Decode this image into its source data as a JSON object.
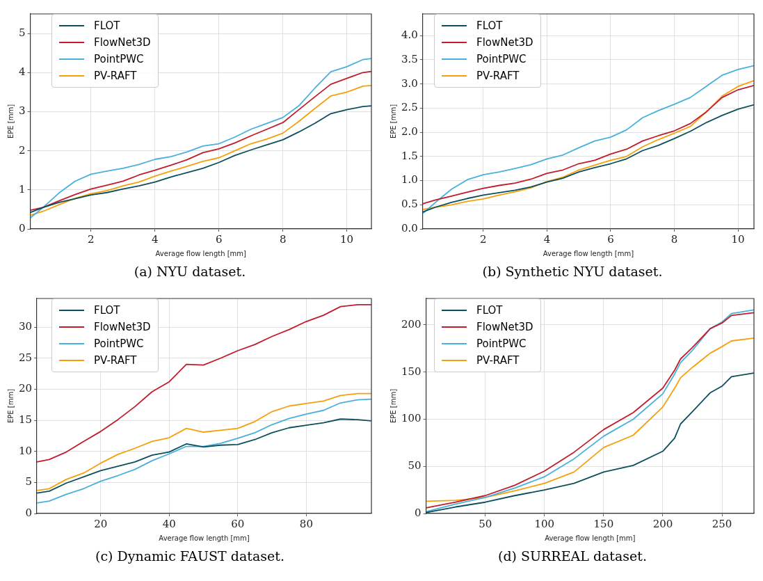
{
  "chart_data": [
    {
      "type": "line",
      "xlabel": "Average flow length [mm]",
      "ylabel": "EPE [mm]",
      "annotations": [
        "(a) NYU dataset."
      ],
      "legend": "top left",
      "grid": true,
      "x": [
        0.1,
        0.5,
        1,
        1.5,
        2,
        2.5,
        3,
        3.5,
        4,
        4.5,
        5,
        5.5,
        6,
        6.5,
        7,
        7.5,
        8,
        8.5,
        9,
        9.5,
        10,
        10.5,
        10.77
      ],
      "xlim": [
        0.1,
        10.77
      ],
      "xticks": [
        2,
        4,
        6,
        8,
        10
      ],
      "ylim": [
        0,
        5.5
      ],
      "yticks": [
        0,
        1,
        2,
        3,
        4,
        5
      ],
      "series": [
        {
          "name": "FLOT",
          "color": "#0b4f5c",
          "values": [
            0.42,
            0.55,
            0.68,
            0.77,
            0.87,
            0.93,
            1.02,
            1.1,
            1.2,
            1.33,
            1.44,
            1.55,
            1.7,
            1.88,
            2.02,
            2.15,
            2.28,
            2.48,
            2.7,
            2.95,
            3.05,
            3.13,
            3.15
          ]
        },
        {
          "name": "FlowNet3D",
          "color": "#c01c2c",
          "values": [
            0.48,
            0.55,
            0.72,
            0.88,
            1.02,
            1.12,
            1.22,
            1.38,
            1.5,
            1.63,
            1.77,
            1.95,
            2.05,
            2.2,
            2.38,
            2.55,
            2.72,
            3.05,
            3.38,
            3.7,
            3.85,
            4.0,
            4.03
          ]
        },
        {
          "name": "PointPWC",
          "color": "#48b0dc",
          "values": [
            0.28,
            0.55,
            0.92,
            1.22,
            1.4,
            1.48,
            1.55,
            1.65,
            1.78,
            1.85,
            1.97,
            2.12,
            2.18,
            2.35,
            2.55,
            2.7,
            2.85,
            3.15,
            3.6,
            4.02,
            4.15,
            4.33,
            4.36
          ]
        },
        {
          "name": "PV-RAFT",
          "color": "#f5a00a",
          "values": [
            0.35,
            0.45,
            0.62,
            0.78,
            0.9,
            0.98,
            1.1,
            1.2,
            1.35,
            1.48,
            1.6,
            1.73,
            1.82,
            2.0,
            2.18,
            2.3,
            2.45,
            2.75,
            3.08,
            3.4,
            3.5,
            3.65,
            3.67
          ]
        }
      ]
    },
    {
      "type": "line",
      "xlabel": "Average flow length [mm]",
      "ylabel": "EPE [mm]",
      "annotations": [
        "(b) Synthetic NYU dataset."
      ],
      "legend": "top left",
      "grid": true,
      "x": [
        0.1,
        0.5,
        1,
        1.5,
        2,
        2.5,
        3,
        3.5,
        4,
        4.5,
        5,
        5.5,
        6,
        6.5,
        7,
        7.5,
        8,
        8.5,
        9,
        9.5,
        10,
        10.5
      ],
      "xlim": [
        0.1,
        10.5
      ],
      "xticks": [
        2,
        4,
        6,
        8,
        10
      ],
      "ylim": [
        0,
        4.45
      ],
      "yticks": [
        {
          "value": 0,
          "label": "0.0"
        },
        {
          "value": 0.5,
          "label": "0.5"
        },
        {
          "value": 1,
          "label": "1.0"
        },
        {
          "value": 1.5,
          "label": "1.5"
        },
        {
          "value": 2,
          "label": "2.0"
        },
        {
          "value": 2.5,
          "label": "2.5"
        },
        {
          "value": 3,
          "label": "3.0"
        },
        {
          "value": 3.5,
          "label": "3.5"
        },
        {
          "value": 4,
          "label": "4.0"
        }
      ],
      "series": [
        {
          "name": "FLOT",
          "color": "#0b4f5c",
          "values": [
            0.35,
            0.45,
            0.55,
            0.63,
            0.7,
            0.75,
            0.8,
            0.87,
            0.97,
            1.05,
            1.18,
            1.27,
            1.35,
            1.45,
            1.62,
            1.73,
            1.87,
            2.02,
            2.2,
            2.35,
            2.48,
            2.57
          ]
        },
        {
          "name": "FlowNet3D",
          "color": "#c01c2c",
          "values": [
            0.52,
            0.6,
            0.68,
            0.76,
            0.84,
            0.9,
            0.95,
            1.03,
            1.15,
            1.22,
            1.35,
            1.42,
            1.55,
            1.65,
            1.82,
            1.93,
            2.03,
            2.18,
            2.42,
            2.72,
            2.88,
            2.97
          ]
        },
        {
          "name": "PointPWC",
          "color": "#48b0dc",
          "values": [
            0.32,
            0.55,
            0.82,
            1.02,
            1.12,
            1.18,
            1.25,
            1.33,
            1.45,
            1.53,
            1.68,
            1.82,
            1.9,
            2.05,
            2.3,
            2.45,
            2.58,
            2.72,
            2.95,
            3.18,
            3.3,
            3.38
          ]
        },
        {
          "name": "PV-RAFT",
          "color": "#f5a00a",
          "values": [
            0.4,
            0.45,
            0.5,
            0.57,
            0.62,
            0.7,
            0.77,
            0.85,
            0.98,
            1.07,
            1.22,
            1.32,
            1.42,
            1.5,
            1.7,
            1.85,
            1.98,
            2.12,
            2.42,
            2.75,
            2.95,
            3.07
          ]
        }
      ]
    },
    {
      "type": "line",
      "xlabel": "Average flow length [mm]",
      "ylabel": "EPE [mm]",
      "annotations": [
        "(c) Dynamic FAUST dataset."
      ],
      "legend": "top left",
      "grid": true,
      "x": [
        1.4,
        5,
        10,
        15,
        20,
        25,
        30,
        35,
        40,
        45,
        50,
        55,
        60,
        65,
        70,
        75,
        80,
        85,
        90,
        95,
        99
      ],
      "xlim": [
        1.4,
        99
      ],
      "xticks": [
        20,
        40,
        60,
        80
      ],
      "ylim": [
        0,
        34.6
      ],
      "yticks": [
        0,
        5,
        10,
        15,
        20,
        25,
        30
      ],
      "series": [
        {
          "name": "FLOT",
          "color": "#0b4f5c",
          "values": [
            3.3,
            3.6,
            4.9,
            5.9,
            6.9,
            7.6,
            8.3,
            9.4,
            9.9,
            11.2,
            10.7,
            11.0,
            11.1,
            11.9,
            13.0,
            13.8,
            14.2,
            14.6,
            15.2,
            15.1,
            14.9
          ]
        },
        {
          "name": "FlowNet3D",
          "color": "#c01c2c",
          "values": [
            8.3,
            8.7,
            9.9,
            11.6,
            13.2,
            15.1,
            17.2,
            19.6,
            21.2,
            24.0,
            23.9,
            25.0,
            26.2,
            27.2,
            28.5,
            29.6,
            30.9,
            31.9,
            33.3,
            33.6,
            33.6
          ]
        },
        {
          "name": "PointPWC",
          "color": "#48b0dc",
          "values": [
            1.7,
            2.0,
            3.1,
            4.0,
            5.2,
            6.1,
            7.1,
            8.5,
            9.6,
            10.8,
            10.8,
            11.3,
            12.1,
            13.0,
            14.3,
            15.3,
            16.0,
            16.6,
            17.8,
            18.3,
            18.4
          ]
        },
        {
          "name": "PV-RAFT",
          "color": "#f5a00a",
          "values": [
            3.7,
            4.0,
            5.5,
            6.5,
            8.1,
            9.5,
            10.5,
            11.6,
            12.2,
            13.7,
            13.1,
            13.4,
            13.7,
            14.8,
            16.4,
            17.3,
            17.7,
            18.1,
            19.0,
            19.3,
            19.3
          ]
        }
      ]
    },
    {
      "type": "line",
      "xlabel": "Average flow length [mm]",
      "ylabel": "EPE [mm]",
      "annotations": [
        "(d) SURREAL dataset."
      ],
      "legend": "top left",
      "grid": true,
      "x": [
        0,
        25,
        50,
        75,
        100,
        125,
        150,
        175,
        200,
        210,
        215,
        225,
        240,
        250,
        258,
        277
      ],
      "xlim": [
        0,
        277
      ],
      "xticks": [
        50,
        100,
        150,
        200,
        250
      ],
      "ylim": [
        0,
        228
      ],
      "yticks": [
        0,
        50,
        100,
        150,
        200
      ],
      "series": [
        {
          "name": "FLOT",
          "color": "#0b4f5c",
          "values": [
            1,
            7,
            12,
            19,
            25,
            32,
            44,
            51,
            66,
            80,
            95,
            108,
            128,
            135,
            145,
            149
          ]
        },
        {
          "name": "FlowNet3D",
          "color": "#c01c2c",
          "values": [
            6,
            12,
            19,
            30,
            45,
            65,
            89,
            107,
            133,
            152,
            164,
            176,
            196,
            202,
            210,
            213
          ]
        },
        {
          "name": "PointPWC",
          "color": "#48b0dc",
          "values": [
            2,
            10,
            17,
            27,
            39,
            58,
            82,
            100,
            127,
            148,
            160,
            173,
            196,
            203,
            212,
            216
          ]
        },
        {
          "name": "PV-RAFT",
          "color": "#f5a00a",
          "values": [
            13,
            14,
            17,
            24,
            32,
            44,
            70,
            83,
            113,
            133,
            144,
            155,
            170,
            177,
            183,
            186
          ]
        }
      ]
    }
  ]
}
